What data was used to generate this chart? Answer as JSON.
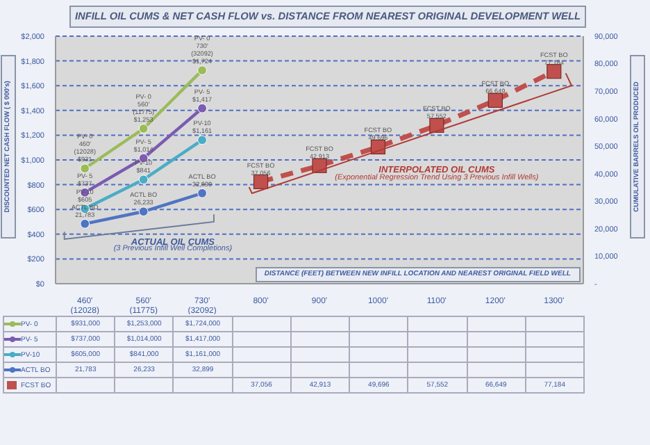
{
  "chart_data": {
    "type": "line",
    "title": "INFILL OIL CUMS & NET CASH FLOW vs. DISTANCE FROM NEAREST ORIGINAL DEVELOPMENT WELL",
    "xlabel": "DISTANCE (FEET) BETWEEN NEW INFILL LOCATION AND NEAREST ORIGINAL FIELD WELL",
    "ylabel": "DISCOUNTED NET CASH FLOW ( $ 000's)",
    "y2label": "CUMULATIVE BARRELS OIL PRODUCED",
    "categories": [
      "460'\n(12028)",
      "560'\n(11775)",
      "730'\n(32092)",
      "800'",
      "900'",
      "1000'",
      "1100'",
      "1200'",
      "1300'"
    ],
    "series": [
      {
        "name": "PV- 0",
        "color": "#9bbb59",
        "values": [
          931,
          1253,
          1724,
          null,
          null,
          null,
          null,
          null,
          null
        ]
      },
      {
        "name": "PV- 5",
        "color": "#7b5cb0",
        "values": [
          737,
          1014,
          1417,
          null,
          null,
          null,
          null,
          null,
          null
        ]
      },
      {
        "name": "PV-10",
        "color": "#4bacc6",
        "values": [
          605,
          841,
          1161,
          null,
          null,
          null,
          null,
          null,
          null
        ]
      },
      {
        "name": "ACTL BO",
        "color": "#4f74c4",
        "axis": "y2",
        "values": [
          21783,
          26233,
          32899,
          null,
          null,
          null,
          null,
          null,
          null
        ],
        "value_labels": [
          "21,783",
          "26,233",
          "32,899",
          null,
          null,
          null,
          null,
          null,
          null
        ]
      },
      {
        "name": "FCST BO",
        "color": "#c0504d",
        "axis": "y2",
        "marker": "square",
        "line_style": "dashed",
        "values": [
          null,
          null,
          null,
          37056,
          42913,
          49696,
          57552,
          66649,
          77184
        ],
        "value_labels": [
          null,
          null,
          null,
          "37,056",
          "42,913",
          "49,696",
          "57,552",
          "66,649",
          "77,184"
        ]
      }
    ],
    "ylim": [
      0,
      2000
    ],
    "yticks": [
      {
        "value": 0,
        "label": "$0"
      },
      {
        "value": 200,
        "label": "$200"
      },
      {
        "value": 400,
        "label": "$400"
      },
      {
        "value": 600,
        "label": "$600"
      },
      {
        "value": 800,
        "label": "$800"
      },
      {
        "value": 1000,
        "label": "$1,000"
      },
      {
        "value": 1200,
        "label": "$1,200"
      },
      {
        "value": 1400,
        "label": "$1,400"
      },
      {
        "value": 1600,
        "label": "$1,600"
      },
      {
        "value": 1800,
        "label": "$1,800"
      },
      {
        "value": 2000,
        "label": "$2,000"
      }
    ],
    "y2lim": [
      0,
      90000
    ],
    "y2ticks": [
      {
        "value": 0,
        "label": "-"
      },
      {
        "value": 10000,
        "label": "10,000"
      },
      {
        "value": 20000,
        "label": "20,000"
      },
      {
        "value": 30000,
        "label": "30,000"
      },
      {
        "value": 40000,
        "label": "40,000"
      },
      {
        "value": 50000,
        "label": "50,000"
      },
      {
        "value": 60000,
        "label": "60,000"
      },
      {
        "value": 70000,
        "label": "70,000"
      },
      {
        "value": 80000,
        "label": "80,000"
      },
      {
        "value": 90000,
        "label": "90,000"
      }
    ],
    "grid": "y",
    "legend": "bottom",
    "marker": "circle",
    "line_style": "solid",
    "annotations": [
      {
        "text": "PV- 0\n460'\n(12028)\n$931",
        "x": "460'\n(12028)",
        "y": 931
      },
      {
        "text": "PV- 0\n560'\n(11775)\n$1,253",
        "x": "560'\n(11775)",
        "y": 1253
      },
      {
        "text": "PV- 0\n730'\n(32092)\n$1,724",
        "x": "730'\n(32092)",
        "y": 1724
      },
      {
        "text": "PV- 5\n$737",
        "x": "460'\n(12028)",
        "y": 737
      },
      {
        "text": "PV- 5\n$1,014",
        "x": "560'\n(11775)",
        "y": 1014
      },
      {
        "text": "PV- 5\n$1,417",
        "x": "730'\n(32092)",
        "y": 1417
      },
      {
        "text": "PV-10\n$605",
        "x": "460'\n(12028)",
        "y": 605
      },
      {
        "text": "PV-10\n$841",
        "x": "560'\n(11775)",
        "y": 841
      },
      {
        "text": "PV-10\n$1,161",
        "x": "730'\n(32092)",
        "y": 1161
      },
      {
        "text": "ACTL BO\n21,783",
        "x": "460'\n(12028)",
        "y": 484
      },
      {
        "text": "ACTL BO\n26,233",
        "x": "560'\n(11775)",
        "y": 583
      },
      {
        "text": "ACTL BO\n32,899",
        "x": "730'\n(32092)",
        "y": 731
      },
      {
        "text": "FCST BO\n37,056",
        "x": "800'",
        "y": 823
      },
      {
        "text": "FCST BO\n42,913",
        "x": "900'",
        "y": 954
      },
      {
        "text": "FCST BO\n49,696",
        "x": "1000'",
        "y": 1104
      },
      {
        "text": "FCST BO\n57,552",
        "x": "1100'",
        "y": 1279
      },
      {
        "text": "FCST BO\n66,649",
        "x": "1200'",
        "y": 1481
      },
      {
        "text": "FCST BO\n77,184",
        "x": "1300'",
        "y": 1715
      },
      "ACTUAL OIL CUMS",
      "(3 Previous Infill Well Completions)",
      "INTERPOLATED OIL CUMS",
      "(Exponential Regression Trend Using 3 Previous Infill Wells)",
      "$931,000",
      "$1,253,000",
      "$1,724,000",
      "$737,000",
      "$1,014,000",
      "$1,417,000",
      "$605,000",
      "$841,000",
      "$1,161,000"
    ]
  }
}
